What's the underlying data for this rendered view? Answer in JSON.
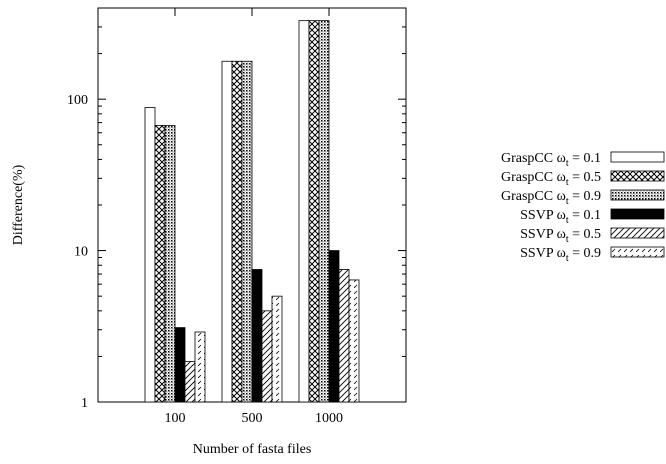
{
  "chart_data": {
    "type": "bar",
    "scale": "log",
    "ylim": [
      1,
      400
    ],
    "yticks": [
      "1",
      "10",
      "100"
    ],
    "xlabel": "Number of fasta files",
    "ylabel": "Difference(%)",
    "categories": [
      "100",
      "500",
      "1000"
    ],
    "legend_position": "right",
    "grid": false,
    "series": [
      {
        "label_main": "GraspCC",
        "omega": "ω",
        "sub": "t",
        "eq": " = 0.1",
        "pattern": "white",
        "values": [
          88,
          178,
          330
        ]
      },
      {
        "label_main": "GraspCC",
        "omega": "ω",
        "sub": "t",
        "eq": " = 0.5",
        "pattern": "cross",
        "values": [
          67,
          178,
          330
        ]
      },
      {
        "label_main": "GraspCC",
        "omega": "ω",
        "sub": "t",
        "eq": " = 0.9",
        "pattern": "dots",
        "values": [
          67,
          178,
          330
        ]
      },
      {
        "label_main": "SSVP",
        "omega": "ω",
        "sub": "t",
        "eq": " = 0.1",
        "pattern": "black",
        "values": [
          3.1,
          7.5,
          10
        ]
      },
      {
        "label_main": "SSVP",
        "omega": "ω",
        "sub": "t",
        "eq": " = 0.5",
        "pattern": "hatch",
        "values": [
          1.85,
          4.0,
          7.5
        ]
      },
      {
        "label_main": "SSVP",
        "omega": "ω",
        "sub": "t",
        "eq": " = 0.9",
        "pattern": "dashed",
        "values": [
          2.9,
          5.0,
          6.4
        ]
      }
    ]
  }
}
